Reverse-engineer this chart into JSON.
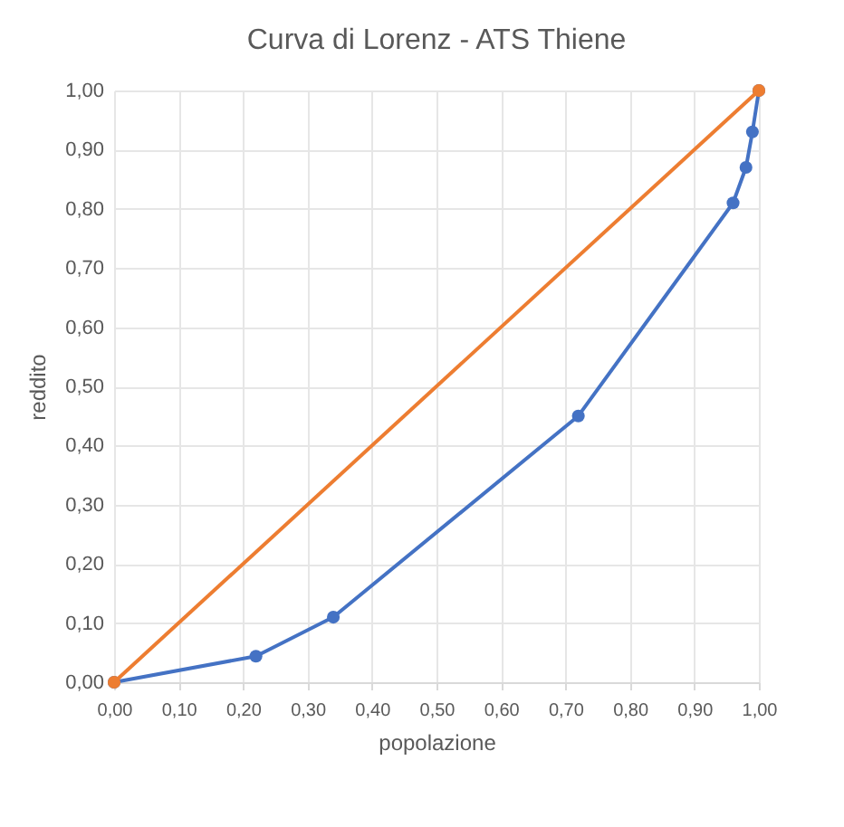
{
  "chart_data": {
    "type": "line",
    "title": "Curva di Lorenz - ATS Thiene",
    "xlabel": "popolazione",
    "ylabel": "reddito",
    "series": [
      {
        "color": "#4472c4",
        "x": [
          0,
          0.22,
          0.34,
          0.72,
          0.96,
          0.98,
          0.99,
          1
        ],
        "values": [
          0,
          0.044,
          0.11,
          0.45,
          0.81,
          0.87,
          0.93,
          1
        ]
      },
      {
        "color": "#ed7d31",
        "x": [
          0,
          1
        ],
        "values": [
          0,
          1
        ]
      }
    ],
    "xlim": [
      0,
      1
    ],
    "ylim": [
      0,
      1
    ],
    "xticks": [
      {
        "value": 0,
        "label": "0,00"
      },
      {
        "value": 0.1,
        "label": "0,10"
      },
      {
        "value": 0.2,
        "label": "0,20"
      },
      {
        "value": 0.3,
        "label": "0,30"
      },
      {
        "value": 0.4,
        "label": "0,40"
      },
      {
        "value": 0.5,
        "label": "0,50"
      },
      {
        "value": 0.6,
        "label": "0,60"
      },
      {
        "value": 0.7,
        "label": "0,70"
      },
      {
        "value": 0.8,
        "label": "0,80"
      },
      {
        "value": 0.9,
        "label": "0,90"
      },
      {
        "value": 1,
        "label": "1,00"
      }
    ],
    "yticks": [
      {
        "value": 0,
        "label": "0,00"
      },
      {
        "value": 0.1,
        "label": "0,10"
      },
      {
        "value": 0.2,
        "label": "0,20"
      },
      {
        "value": 0.3,
        "label": "0,30"
      },
      {
        "value": 0.4,
        "label": "0,40"
      },
      {
        "value": 0.5,
        "label": "0,50"
      },
      {
        "value": 0.6,
        "label": "0,60"
      },
      {
        "value": 0.7,
        "label": "0,70"
      },
      {
        "value": 0.8,
        "label": "0,80"
      },
      {
        "value": 0.9,
        "label": "0,90"
      },
      {
        "value": 1,
        "label": "1,00"
      }
    ],
    "grid": true,
    "marker": "circle",
    "line_style": "solid"
  }
}
